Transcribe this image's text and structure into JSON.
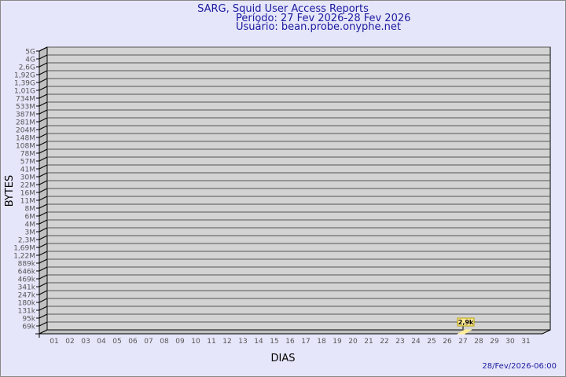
{
  "header": {
    "title": "SARG, Squid User Access Reports",
    "period": "Período: 27 Fev 2026-28 Fev 2026",
    "user": "Usuário: bean.probe.onyphe.net"
  },
  "footer": {
    "timestamp": "28/Fev/2026-06:00"
  },
  "colors": {
    "background": "#e6e6fa",
    "plot": "#d3d3d3",
    "bar": "#ffeb99",
    "title": "#1a1aa0"
  },
  "chart_data": {
    "type": "bar",
    "xlabel": "DIAS",
    "ylabel": "BYTES",
    "categories": [
      "01",
      "02",
      "03",
      "04",
      "05",
      "06",
      "07",
      "08",
      "09",
      "10",
      "11",
      "12",
      "13",
      "14",
      "15",
      "16",
      "17",
      "18",
      "19",
      "20",
      "21",
      "22",
      "23",
      "24",
      "25",
      "26",
      "27",
      "28",
      "29",
      "30",
      "31"
    ],
    "values": [
      null,
      null,
      null,
      null,
      null,
      null,
      null,
      null,
      null,
      null,
      null,
      null,
      null,
      null,
      null,
      null,
      null,
      null,
      null,
      null,
      null,
      null,
      null,
      null,
      null,
      null,
      2900,
      null,
      null,
      null,
      null
    ],
    "data_labels": {
      "27": "2,9k"
    },
    "y_ticks": [
      "5G",
      "4G",
      "2,6G",
      "1,92G",
      "1,39G",
      "1,01G",
      "734M",
      "533M",
      "387M",
      "281M",
      "204M",
      "148M",
      "108M",
      "78M",
      "57M",
      "41M",
      "30M",
      "22M",
      "16M",
      "11M",
      "8M",
      "6M",
      "4M",
      "3M",
      "2,3M",
      "1,69M",
      "1,22M",
      "889k",
      "646k",
      "469k",
      "341k",
      "247k",
      "180k",
      "131k",
      "95k",
      "69k"
    ],
    "y_scale": "log",
    "grid": true
  }
}
